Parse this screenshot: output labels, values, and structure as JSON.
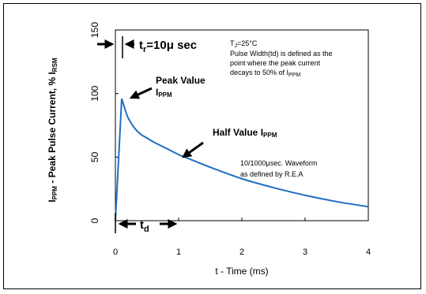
{
  "chart_data": {
    "type": "line",
    "xlabel": "t - Time (ms)",
    "ylabel_main": "I",
    "ylabel_main_sub": "PPM",
    "ylabel_rest": " - Peak Pulse Current, % I",
    "ylabel_rest_sub": "RSM",
    "xlim": [
      0,
      4
    ],
    "ylim": [
      0,
      150
    ],
    "x_ticks": [
      "0",
      "1",
      "2",
      "3",
      "4"
    ],
    "y_ticks": [
      "0",
      "50",
      "100",
      "150"
    ],
    "grid": false,
    "legend": "none",
    "series": [
      {
        "color": "#1f6fbf",
        "points": [
          [
            0.0,
            0
          ],
          [
            0.1,
            96
          ],
          [
            0.15,
            88
          ],
          [
            0.2,
            81
          ],
          [
            0.3,
            73
          ],
          [
            0.4,
            68
          ],
          [
            0.5,
            65
          ],
          [
            0.6,
            62
          ],
          [
            0.8,
            57
          ],
          [
            1.0,
            52
          ],
          [
            1.2,
            48
          ],
          [
            1.5,
            42
          ],
          [
            2.0,
            33
          ],
          [
            2.5,
            26
          ],
          [
            3.0,
            20
          ],
          [
            3.5,
            15
          ],
          [
            4.0,
            11
          ]
        ]
      }
    ],
    "annotations": {
      "tr_prefix": "t",
      "tr_sub": "r",
      "tr_value": "=10μ sec",
      "tj_prefix": "T",
      "tj_sub": "J",
      "tj_value": "=25°C",
      "pulse_width_line1": "Pulse Width(td) is defined as the",
      "pulse_width_line2": "point where the peak current",
      "pulse_width_line3": "decays to 50% of I",
      "pulse_width_line3_sub": "PPM",
      "peak_value_line1": "Peak Value",
      "peak_value_line2": "I",
      "peak_value_line2_sub": "PPM",
      "half_value": "Half Value I",
      "half_value_sub": "PPM",
      "waveform_line1": "10/1000μsec.  Waveform",
      "waveform_line2": "as defined by R.E.A",
      "td_prefix": "t",
      "td_sub": "d"
    }
  }
}
